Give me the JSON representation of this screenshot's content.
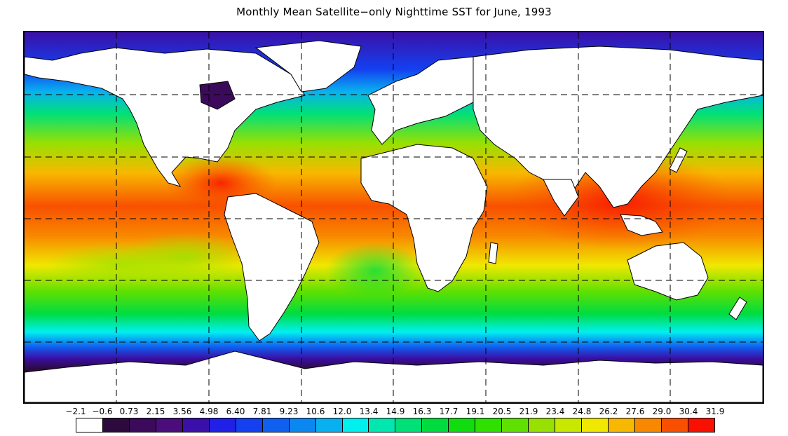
{
  "title": "Monthly Mean Satellite−only Nighttime SST for June, 1993",
  "map": {
    "projection": "equirectangular",
    "background": "#ffffff",
    "land_color": "#ffffff",
    "coast_color": "#000000",
    "grid": "dashed"
  },
  "colorbar": {
    "labels": [
      "−2.1",
      "−0.6",
      "0.73",
      "2.15",
      "3.56",
      "4.98",
      "6.40",
      "7.81",
      "9.23",
      "10.6",
      "12.0",
      "13.4",
      "14.9",
      "16.3",
      "17.7",
      "19.1",
      "20.5",
      "21.9",
      "23.4",
      "24.8",
      "26.2",
      "27.6",
      "29.0",
      "30.4",
      "31.9"
    ],
    "colors": [
      "#ffffff",
      "#2d0a3d",
      "#3c0a5a",
      "#4a0d7a",
      "#3a10a8",
      "#2020e6",
      "#1440f0",
      "#1060f0",
      "#0a88f0",
      "#08b0f0",
      "#00f0f0",
      "#00e8b0",
      "#00e078",
      "#00dc40",
      "#10dc10",
      "#30e000",
      "#60e000",
      "#98e000",
      "#c8e800",
      "#f0e800",
      "#f8b800",
      "#f88800",
      "#f85000",
      "#f81000"
    ]
  }
}
